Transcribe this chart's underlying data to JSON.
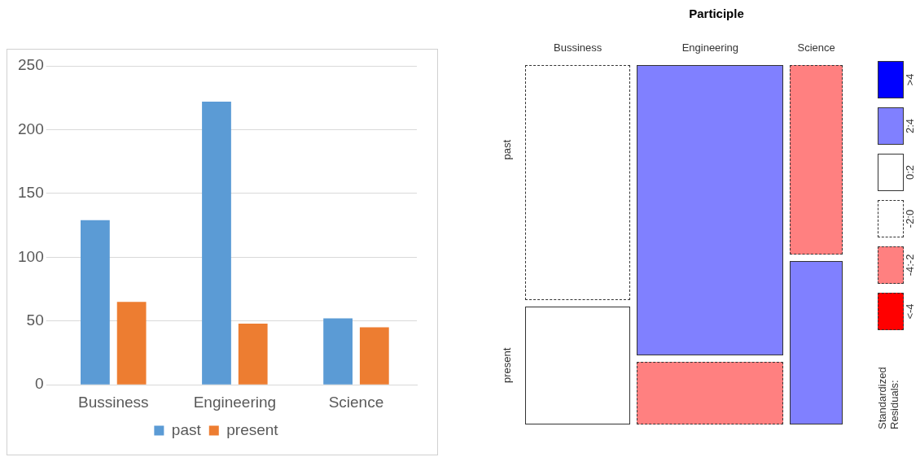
{
  "chart_data": [
    {
      "type": "bar",
      "categories": [
        "Bussiness",
        "Engineering",
        "Science"
      ],
      "series": [
        {
          "name": "past",
          "color": "#5b9bd5",
          "values": [
            129,
            222,
            52
          ]
        },
        {
          "name": "present",
          "color": "#ed7d31",
          "values": [
            65,
            48,
            45
          ]
        }
      ],
      "ylim": [
        0,
        250
      ],
      "yticks": [
        0,
        50,
        100,
        150,
        200,
        250
      ],
      "grid": "y",
      "legend": "bottom"
    },
    {
      "type": "other",
      "title": "Participle",
      "categories": [
        "Bussiness",
        "Engineering",
        "Science"
      ],
      "y_categories": [
        "past",
        "present"
      ],
      "legend_title": "Standardized Residuals:",
      "annotations": [
        ">4",
        "2:4",
        "0:2",
        "-2:0",
        "-4:-2",
        "<-4"
      ],
      "colors": [
        "#ffffff",
        "#8080ff",
        "#ff8080",
        "#ffffff",
        "#ff8080",
        "#8080ff"
      ]
    }
  ]
}
